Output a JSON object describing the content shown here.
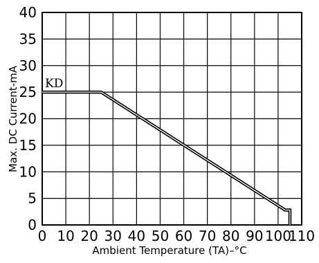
{
  "chart_data": {
    "type": "line",
    "xlabel": "Ambient Temperature (TA)–°C",
    "ylabel": "Max. DC Current-mA",
    "xlim": [
      0,
      110
    ],
    "ylim": [
      0,
      40
    ],
    "x_ticks": [
      "0",
      "10",
      "20",
      "30",
      "40",
      "50",
      "60",
      "70",
      "80",
      "90",
      "100",
      "110"
    ],
    "y_ticks": [
      "0",
      "5",
      "10",
      "15",
      "20",
      "25",
      "30",
      "35",
      "40"
    ],
    "grid": true,
    "series": [
      {
        "name": "KD",
        "x": [
          0,
          25,
          103,
          105,
          105
        ],
        "y": [
          25,
          25,
          2.8,
          2.8,
          0
        ]
      }
    ]
  }
}
